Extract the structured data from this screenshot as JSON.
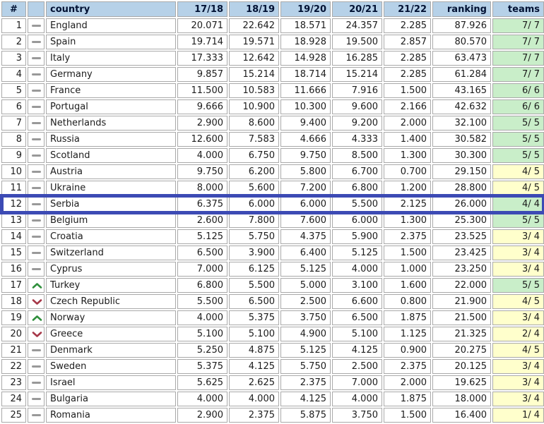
{
  "table": {
    "columns": [
      {
        "key": "rank",
        "label": "#"
      },
      {
        "key": "movement",
        "label": ""
      },
      {
        "key": "country",
        "label": "country"
      },
      {
        "key": "s1718",
        "label": "17/18"
      },
      {
        "key": "s1819",
        "label": "18/19"
      },
      {
        "key": "s1920",
        "label": "19/20"
      },
      {
        "key": "s2021",
        "label": "20/21"
      },
      {
        "key": "s2122",
        "label": "21/22"
      },
      {
        "key": "ranking",
        "label": "ranking"
      },
      {
        "key": "teams",
        "label": "teams"
      }
    ],
    "highlighted_rank": 12,
    "rows": [
      {
        "rank": "1",
        "movement": "same",
        "country": "England",
        "s1718": "20.071",
        "s1819": "22.642",
        "s1920": "18.571",
        "s2021": "24.357",
        "s2122": "2.285",
        "ranking": "87.926",
        "teams": "7/ 7"
      },
      {
        "rank": "2",
        "movement": "same",
        "country": "Spain",
        "s1718": "19.714",
        "s1819": "19.571",
        "s1920": "18.928",
        "s2021": "19.500",
        "s2122": "2.857",
        "ranking": "80.570",
        "teams": "7/ 7"
      },
      {
        "rank": "3",
        "movement": "same",
        "country": "Italy",
        "s1718": "17.333",
        "s1819": "12.642",
        "s1920": "14.928",
        "s2021": "16.285",
        "s2122": "2.285",
        "ranking": "63.473",
        "teams": "7/ 7"
      },
      {
        "rank": "4",
        "movement": "same",
        "country": "Germany",
        "s1718": "9.857",
        "s1819": "15.214",
        "s1920": "18.714",
        "s2021": "15.214",
        "s2122": "2.285",
        "ranking": "61.284",
        "teams": "7/ 7"
      },
      {
        "rank": "5",
        "movement": "same",
        "country": "France",
        "s1718": "11.500",
        "s1819": "10.583",
        "s1920": "11.666",
        "s2021": "7.916",
        "s2122": "1.500",
        "ranking": "43.165",
        "teams": "6/ 6"
      },
      {
        "rank": "6",
        "movement": "same",
        "country": "Portugal",
        "s1718": "9.666",
        "s1819": "10.900",
        "s1920": "10.300",
        "s2021": "9.600",
        "s2122": "2.166",
        "ranking": "42.632",
        "teams": "6/ 6"
      },
      {
        "rank": "7",
        "movement": "same",
        "country": "Netherlands",
        "s1718": "2.900",
        "s1819": "8.600",
        "s1920": "9.400",
        "s2021": "9.200",
        "s2122": "2.000",
        "ranking": "32.100",
        "teams": "5/ 5"
      },
      {
        "rank": "8",
        "movement": "same",
        "country": "Russia",
        "s1718": "12.600",
        "s1819": "7.583",
        "s1920": "4.666",
        "s2021": "4.333",
        "s2122": "1.400",
        "ranking": "30.582",
        "teams": "5/ 5"
      },
      {
        "rank": "9",
        "movement": "same",
        "country": "Scotland",
        "s1718": "4.000",
        "s1819": "6.750",
        "s1920": "9.750",
        "s2021": "8.500",
        "s2122": "1.300",
        "ranking": "30.300",
        "teams": "5/ 5"
      },
      {
        "rank": "10",
        "movement": "same",
        "country": "Austria",
        "s1718": "9.750",
        "s1819": "6.200",
        "s1920": "5.800",
        "s2021": "6.700",
        "s2122": "0.700",
        "ranking": "29.150",
        "teams": "4/ 5"
      },
      {
        "rank": "11",
        "movement": "same",
        "country": "Ukraine",
        "s1718": "8.000",
        "s1819": "5.600",
        "s1920": "7.200",
        "s2021": "6.800",
        "s2122": "1.200",
        "ranking": "28.800",
        "teams": "4/ 5"
      },
      {
        "rank": "12",
        "movement": "same",
        "country": "Serbia",
        "s1718": "6.375",
        "s1819": "6.000",
        "s1920": "6.000",
        "s2021": "5.500",
        "s2122": "2.125",
        "ranking": "26.000",
        "teams": "4/ 4"
      },
      {
        "rank": "13",
        "movement": "same",
        "country": "Belgium",
        "s1718": "2.600",
        "s1819": "7.800",
        "s1920": "7.600",
        "s2021": "6.000",
        "s2122": "1.300",
        "ranking": "25.300",
        "teams": "5/ 5"
      },
      {
        "rank": "14",
        "movement": "same",
        "country": "Croatia",
        "s1718": "5.125",
        "s1819": "5.750",
        "s1920": "4.375",
        "s2021": "5.900",
        "s2122": "2.375",
        "ranking": "23.525",
        "teams": "3/ 4"
      },
      {
        "rank": "15",
        "movement": "same",
        "country": "Switzerland",
        "s1718": "6.500",
        "s1819": "3.900",
        "s1920": "6.400",
        "s2021": "5.125",
        "s2122": "1.500",
        "ranking": "23.425",
        "teams": "3/ 4"
      },
      {
        "rank": "16",
        "movement": "same",
        "country": "Cyprus",
        "s1718": "7.000",
        "s1819": "6.125",
        "s1920": "5.125",
        "s2021": "4.000",
        "s2122": "1.000",
        "ranking": "23.250",
        "teams": "3/ 4"
      },
      {
        "rank": "17",
        "movement": "up",
        "country": "Turkey",
        "s1718": "6.800",
        "s1819": "5.500",
        "s1920": "5.000",
        "s2021": "3.100",
        "s2122": "1.600",
        "ranking": "22.000",
        "teams": "5/ 5"
      },
      {
        "rank": "18",
        "movement": "down",
        "country": "Czech Republic",
        "s1718": "5.500",
        "s1819": "6.500",
        "s1920": "2.500",
        "s2021": "6.600",
        "s2122": "0.800",
        "ranking": "21.900",
        "teams": "4/ 5"
      },
      {
        "rank": "19",
        "movement": "up",
        "country": "Norway",
        "s1718": "4.000",
        "s1819": "5.375",
        "s1920": "3.750",
        "s2021": "6.500",
        "s2122": "1.875",
        "ranking": "21.500",
        "teams": "3/ 4"
      },
      {
        "rank": "20",
        "movement": "down",
        "country": "Greece",
        "s1718": "5.100",
        "s1819": "5.100",
        "s1920": "4.900",
        "s2021": "5.100",
        "s2122": "1.125",
        "ranking": "21.325",
        "teams": "2/ 4"
      },
      {
        "rank": "21",
        "movement": "same",
        "country": "Denmark",
        "s1718": "5.250",
        "s1819": "4.875",
        "s1920": "5.125",
        "s2021": "4.125",
        "s2122": "0.900",
        "ranking": "20.275",
        "teams": "4/ 5"
      },
      {
        "rank": "22",
        "movement": "same",
        "country": "Sweden",
        "s1718": "5.375",
        "s1819": "4.125",
        "s1920": "5.750",
        "s2021": "2.500",
        "s2122": "2.375",
        "ranking": "20.125",
        "teams": "3/ 4"
      },
      {
        "rank": "23",
        "movement": "same",
        "country": "Israel",
        "s1718": "5.625",
        "s1819": "2.625",
        "s1920": "2.375",
        "s2021": "7.000",
        "s2122": "2.000",
        "ranking": "19.625",
        "teams": "3/ 4"
      },
      {
        "rank": "24",
        "movement": "same",
        "country": "Bulgaria",
        "s1718": "4.000",
        "s1819": "4.000",
        "s1920": "4.125",
        "s2021": "4.000",
        "s2122": "1.875",
        "ranking": "18.000",
        "teams": "3/ 4"
      },
      {
        "rank": "25",
        "movement": "same",
        "country": "Romania",
        "s1718": "2.900",
        "s1819": "2.375",
        "s1920": "5.875",
        "s2021": "3.750",
        "s2122": "1.500",
        "ranking": "16.400",
        "teams": "1/ 4"
      }
    ]
  },
  "icons": {
    "up": "chevron-up",
    "down": "chevron-down",
    "same": "dash"
  },
  "palette": {
    "header_bg": "#b6d1e8",
    "header_text": "#001133",
    "grid_border": "#a9a9a9",
    "row_bg": "#ffffff",
    "text": "#1c1c1c",
    "teams_green": "#c9eec9",
    "teams_yellow": "#ffffcc",
    "highlight_border": "#3c4ab4",
    "up_green": "#2f8f3c",
    "down_red": "#a63848",
    "dash_gray": "#999999"
  }
}
